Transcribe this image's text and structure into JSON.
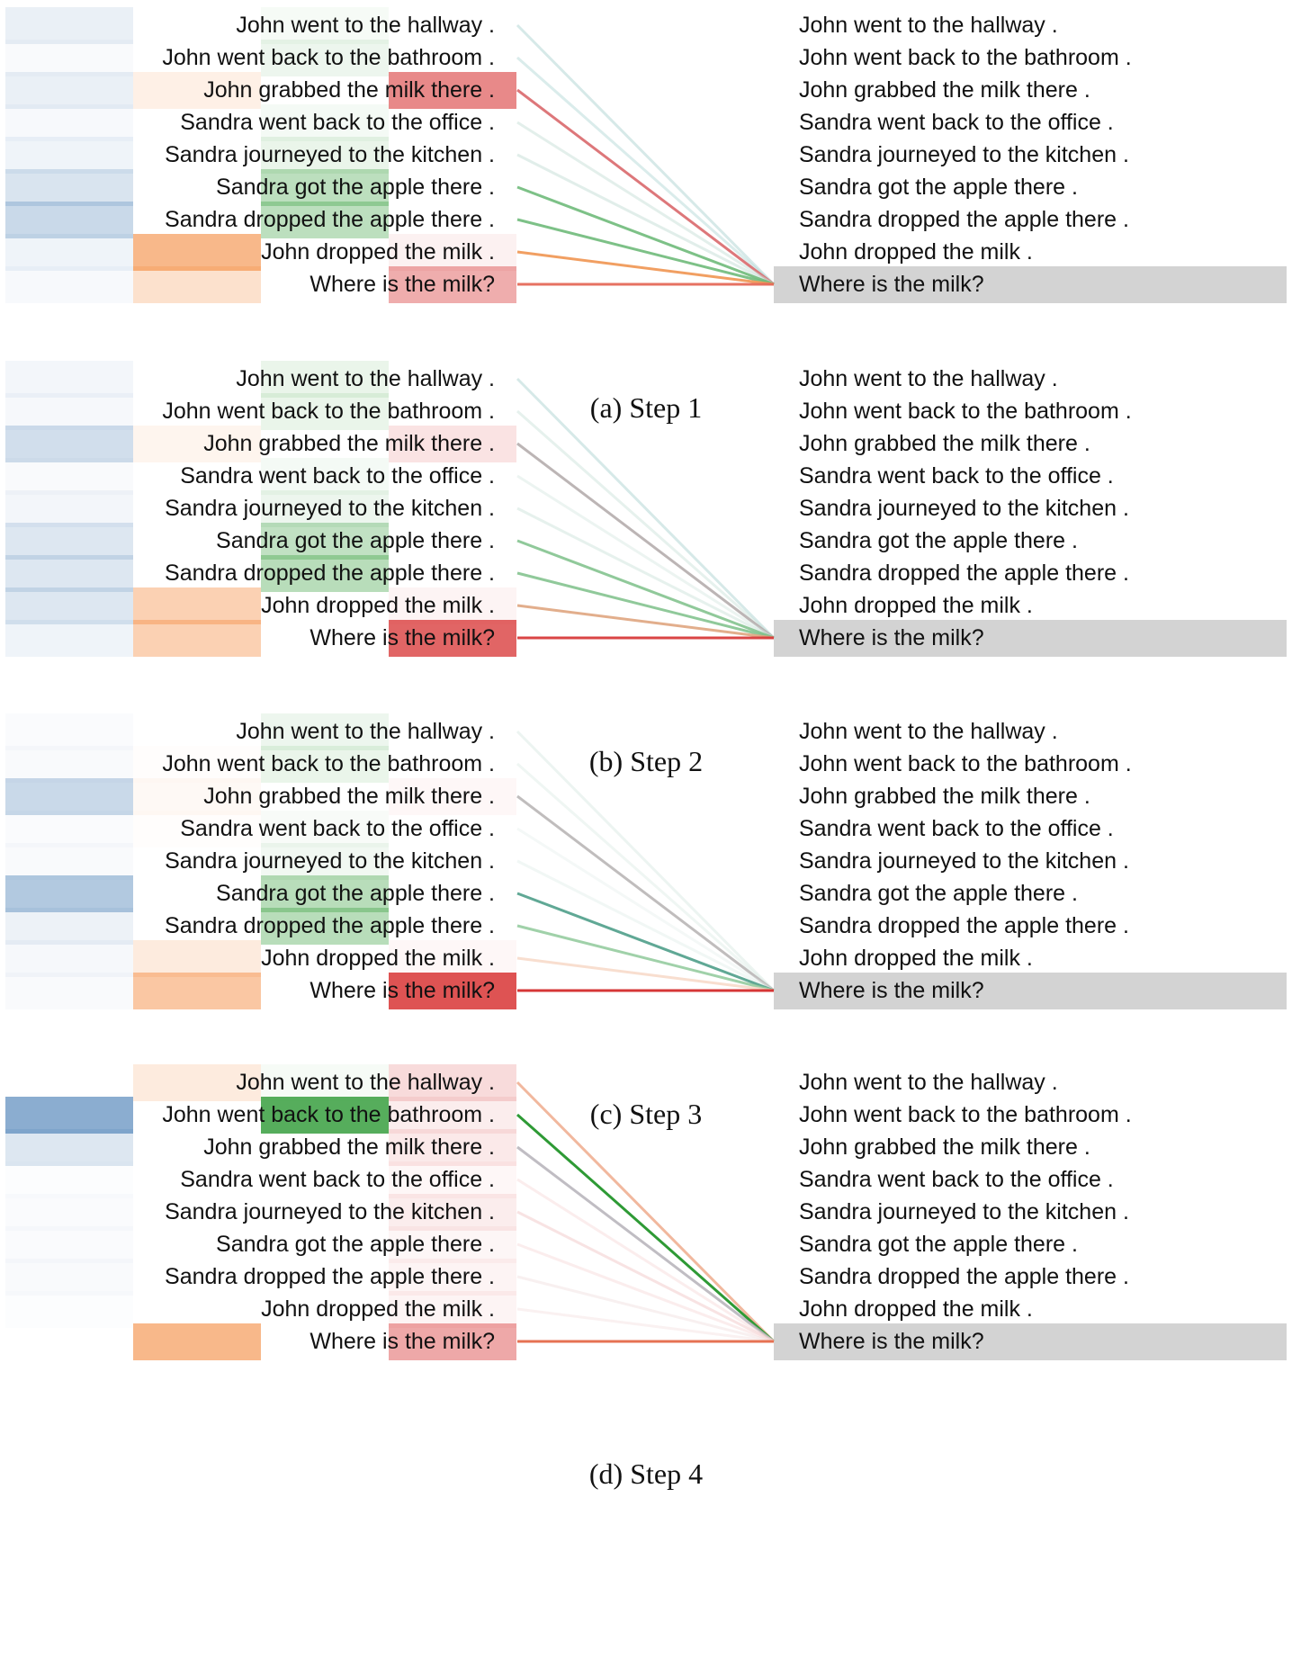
{
  "sentences": [
    "John went to the hallway .",
    "John went back to the bathroom .",
    "John grabbed the milk there .",
    "Sandra went back to the office .",
    "Sandra journeyed to the kitchen .",
    "Sandra got the apple there .",
    "Sandra dropped the apple there .",
    "John dropped the milk .",
    "Where is the milk?"
  ],
  "colors": {
    "blue": "#4a7fb5",
    "orange": "#f4883a",
    "green": "#2e9a35",
    "red": "#d62a2a",
    "query_background": "#d3d3d3",
    "gray_link": "#a0a0a0"
  },
  "steps": [
    {
      "caption": "(a) Step 1",
      "weights": {
        "blue": [
          0.14,
          0.04,
          0.14,
          0.05,
          0.1,
          0.25,
          0.35,
          0.1,
          0.05
        ],
        "orange": [
          0.0,
          0.0,
          0.15,
          0.0,
          0.0,
          0.0,
          0.0,
          0.7,
          0.3
        ],
        "green": [
          0.05,
          0.1,
          0.0,
          0.06,
          0.12,
          0.38,
          0.38,
          0.0,
          0.0
        ],
        "red": [
          0.0,
          0.0,
          0.65,
          0.0,
          0.0,
          0.0,
          0.0,
          0.08,
          0.45
        ]
      },
      "links": [
        {
          "color": "#a3cfcd",
          "opacity": 0.45
        },
        {
          "color": "#a3cfcd",
          "opacity": 0.4
        },
        {
          "color": "#d9686b",
          "opacity": 0.9
        },
        {
          "color": "#c7dfd8",
          "opacity": 0.5
        },
        {
          "color": "#c3ddd6",
          "opacity": 0.5
        },
        {
          "color": "#6fba7a",
          "opacity": 0.9
        },
        {
          "color": "#6fba7a",
          "opacity": 0.9
        },
        {
          "color": "#f09a5a",
          "opacity": 0.95
        },
        {
          "color": "#e56a5a",
          "opacity": 0.95
        }
      ]
    },
    {
      "caption": "(b) Step 2",
      "weights": {
        "blue": [
          0.08,
          0.06,
          0.3,
          0.04,
          0.08,
          0.22,
          0.22,
          0.22,
          0.1
        ],
        "orange": [
          0.0,
          0.0,
          0.1,
          0.0,
          0.0,
          0.0,
          0.0,
          0.45,
          0.45
        ],
        "green": [
          0.12,
          0.12,
          0.0,
          0.06,
          0.1,
          0.35,
          0.4,
          0.0,
          0.0
        ],
        "red": [
          0.0,
          0.0,
          0.15,
          0.0,
          0.0,
          0.0,
          0.0,
          0.06,
          0.85
        ]
      },
      "links": [
        {
          "color": "#a3cfcd",
          "opacity": 0.45
        },
        {
          "color": "#c7dfd8",
          "opacity": 0.45
        },
        {
          "color": "#b0a8a8",
          "opacity": 0.85
        },
        {
          "color": "#d5e6e0",
          "opacity": 0.45
        },
        {
          "color": "#c7dfd8",
          "opacity": 0.45
        },
        {
          "color": "#7cc088",
          "opacity": 0.85
        },
        {
          "color": "#7cc088",
          "opacity": 0.85
        },
        {
          "color": "#dfa57f",
          "opacity": 0.9
        },
        {
          "color": "#d83b3b",
          "opacity": 0.95
        }
      ]
    },
    {
      "caption": "(c) Step 3",
      "weights": {
        "blue": [
          0.03,
          0.04,
          0.35,
          0.03,
          0.04,
          0.5,
          0.12,
          0.06,
          0.04
        ],
        "orange": [
          0.0,
          0.02,
          0.06,
          0.02,
          0.0,
          0.0,
          0.0,
          0.2,
          0.55
        ],
        "green": [
          0.1,
          0.12,
          0.0,
          0.04,
          0.08,
          0.4,
          0.4,
          0.0,
          0.0
        ],
        "red": [
          0.0,
          0.0,
          0.04,
          0.0,
          0.0,
          0.0,
          0.0,
          0.04,
          0.95
        ]
      },
      "links": [
        {
          "color": "#d5e6e0",
          "opacity": 0.45
        },
        {
          "color": "#dcebe5",
          "opacity": 0.45
        },
        {
          "color": "#b5b2b2",
          "opacity": 0.85
        },
        {
          "color": "#e3eeea",
          "opacity": 0.4
        },
        {
          "color": "#dcebe5",
          "opacity": 0.4
        },
        {
          "color": "#4f9e89",
          "opacity": 0.9
        },
        {
          "color": "#8fc99a",
          "opacity": 0.85
        },
        {
          "color": "#f6d6c3",
          "opacity": 0.8
        },
        {
          "color": "#d42b2b",
          "opacity": 0.95
        }
      ]
    },
    {
      "caption": "(d) Step 4",
      "weights": {
        "blue": [
          0.0,
          0.75,
          0.22,
          0.02,
          0.03,
          0.03,
          0.04,
          0.02,
          0.0
        ],
        "orange": [
          0.2,
          0.0,
          0.0,
          0.0,
          0.0,
          0.0,
          0.0,
          0.0,
          0.7
        ],
        "green": [
          0.05,
          0.95,
          0.0,
          0.0,
          0.0,
          0.0,
          0.0,
          0.0,
          0.0
        ],
        "red": [
          0.2,
          0.1,
          0.12,
          0.04,
          0.1,
          0.05,
          0.06,
          0.06,
          0.48
        ]
      },
      "links": [
        {
          "color": "#f0b094",
          "opacity": 0.9
        },
        {
          "color": "#2e9a35",
          "opacity": 1.0
        },
        {
          "color": "#b5b2b8",
          "opacity": 0.85
        },
        {
          "color": "#f7dcdc",
          "opacity": 0.5
        },
        {
          "color": "#f3cccc",
          "opacity": 0.55
        },
        {
          "color": "#f7dcdc",
          "opacity": 0.5
        },
        {
          "color": "#f0dede",
          "opacity": 0.45
        },
        {
          "color": "#f3e0e0",
          "opacity": 0.45
        },
        {
          "color": "#e56a4a",
          "opacity": 0.95
        }
      ]
    }
  ]
}
